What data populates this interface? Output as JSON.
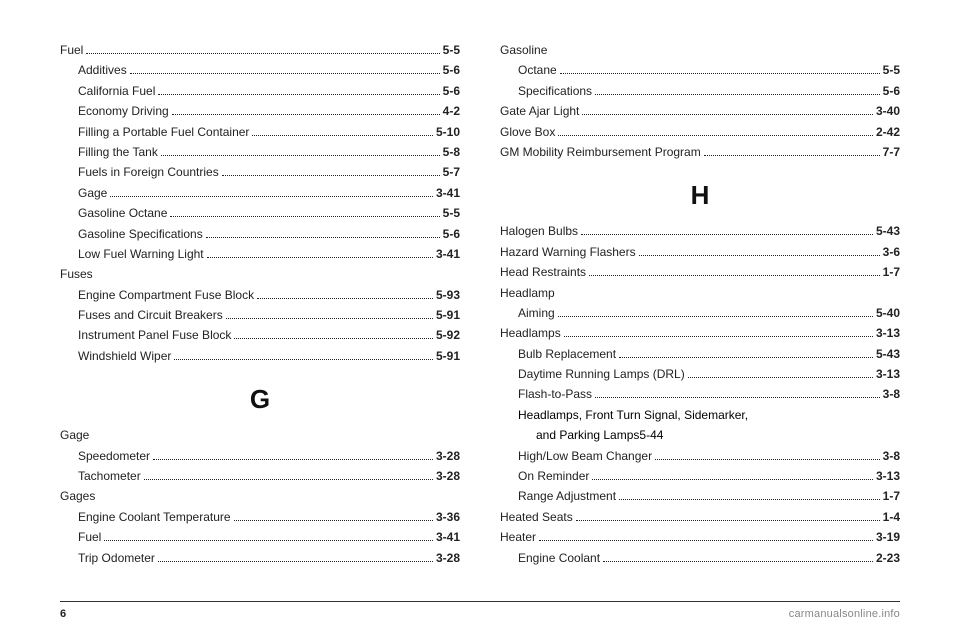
{
  "left": {
    "groups": [
      {
        "entries": [
          {
            "label": "Fuel",
            "page": "5-5",
            "indent": 0
          },
          {
            "label": "Additives",
            "page": "5-6",
            "indent": 1
          },
          {
            "label": "California Fuel",
            "page": "5-6",
            "indent": 1
          },
          {
            "label": "Economy Driving",
            "page": "4-2",
            "indent": 1
          },
          {
            "label": "Filling a Portable Fuel Container",
            "page": "5-10",
            "indent": 1
          },
          {
            "label": "Filling the Tank",
            "page": "5-8",
            "indent": 1
          },
          {
            "label": "Fuels in Foreign Countries",
            "page": "5-7",
            "indent": 1
          },
          {
            "label": "Gage",
            "page": "3-41",
            "indent": 1
          },
          {
            "label": "Gasoline Octane",
            "page": "5-5",
            "indent": 1
          },
          {
            "label": "Gasoline Specifications",
            "page": "5-6",
            "indent": 1
          },
          {
            "label": "Low Fuel Warning Light",
            "page": "3-41",
            "indent": 1
          }
        ]
      },
      {
        "heading": "Fuses",
        "entries": [
          {
            "label": "Engine Compartment Fuse Block",
            "page": "5-93",
            "indent": 1
          },
          {
            "label": "Fuses and Circuit Breakers",
            "page": "5-91",
            "indent": 1
          },
          {
            "label": "Instrument Panel Fuse Block",
            "page": "5-92",
            "indent": 1
          },
          {
            "label": "Windshield Wiper",
            "page": "5-91",
            "indent": 1
          }
        ]
      }
    ],
    "letter": "G",
    "letterGroups": [
      {
        "heading": "Gage",
        "entries": [
          {
            "label": "Speedometer",
            "page": "3-28",
            "indent": 1
          },
          {
            "label": "Tachometer",
            "page": "3-28",
            "indent": 1
          }
        ]
      },
      {
        "heading": "Gages",
        "entries": [
          {
            "label": "Engine Coolant Temperature",
            "page": "3-36",
            "indent": 1
          },
          {
            "label": "Fuel",
            "page": "3-41",
            "indent": 1
          },
          {
            "label": "Trip Odometer",
            "page": "3-28",
            "indent": 1
          }
        ]
      }
    ]
  },
  "right": {
    "groups": [
      {
        "heading": "Gasoline",
        "entries": [
          {
            "label": "Octane",
            "page": "5-5",
            "indent": 1
          },
          {
            "label": "Specifications",
            "page": "5-6",
            "indent": 1
          }
        ]
      },
      {
        "entries": [
          {
            "label": "Gate Ajar Light",
            "page": "3-40",
            "indent": 0
          },
          {
            "label": "Glove Box",
            "page": "2-42",
            "indent": 0
          },
          {
            "label": "GM Mobility Reimbursement Program",
            "page": "7-7",
            "indent": 0
          }
        ]
      }
    ],
    "letter": "H",
    "letterGroups": [
      {
        "entries": [
          {
            "label": "Halogen Bulbs",
            "page": "5-43",
            "indent": 0
          },
          {
            "label": "Hazard Warning Flashers",
            "page": "3-6",
            "indent": 0
          },
          {
            "label": "Head Restraints",
            "page": "1-7",
            "indent": 0
          }
        ]
      },
      {
        "heading": "Headlamp",
        "entries": [
          {
            "label": "Aiming",
            "page": "5-40",
            "indent": 1
          }
        ]
      },
      {
        "entries": [
          {
            "label": "Headlamps",
            "page": "3-13",
            "indent": 0
          },
          {
            "label": "Bulb Replacement",
            "page": "5-43",
            "indent": 1
          },
          {
            "label": "Daytime Running Lamps (DRL)",
            "page": "3-13",
            "indent": 1
          },
          {
            "label": "Flash-to-Pass",
            "page": "3-8",
            "indent": 1
          },
          {
            "label": "Headlamps, Front Turn Signal, Sidemarker,",
            "label2": "and Parking Lamps",
            "page": "5-44",
            "indent": 1,
            "multiline": true
          },
          {
            "label": "High/Low Beam Changer",
            "page": "3-8",
            "indent": 1
          },
          {
            "label": "On Reminder",
            "page": "3-13",
            "indent": 1
          },
          {
            "label": "Range Adjustment",
            "page": "1-7",
            "indent": 1
          }
        ]
      },
      {
        "entries": [
          {
            "label": "Heated Seats",
            "page": "1-4",
            "indent": 0
          },
          {
            "label": "Heater",
            "page": "3-19",
            "indent": 0
          },
          {
            "label": "Engine Coolant",
            "page": "2-23",
            "indent": 1
          }
        ]
      }
    ]
  },
  "footer": {
    "pageNumber": "6",
    "site": "carmanualsonline.info"
  }
}
